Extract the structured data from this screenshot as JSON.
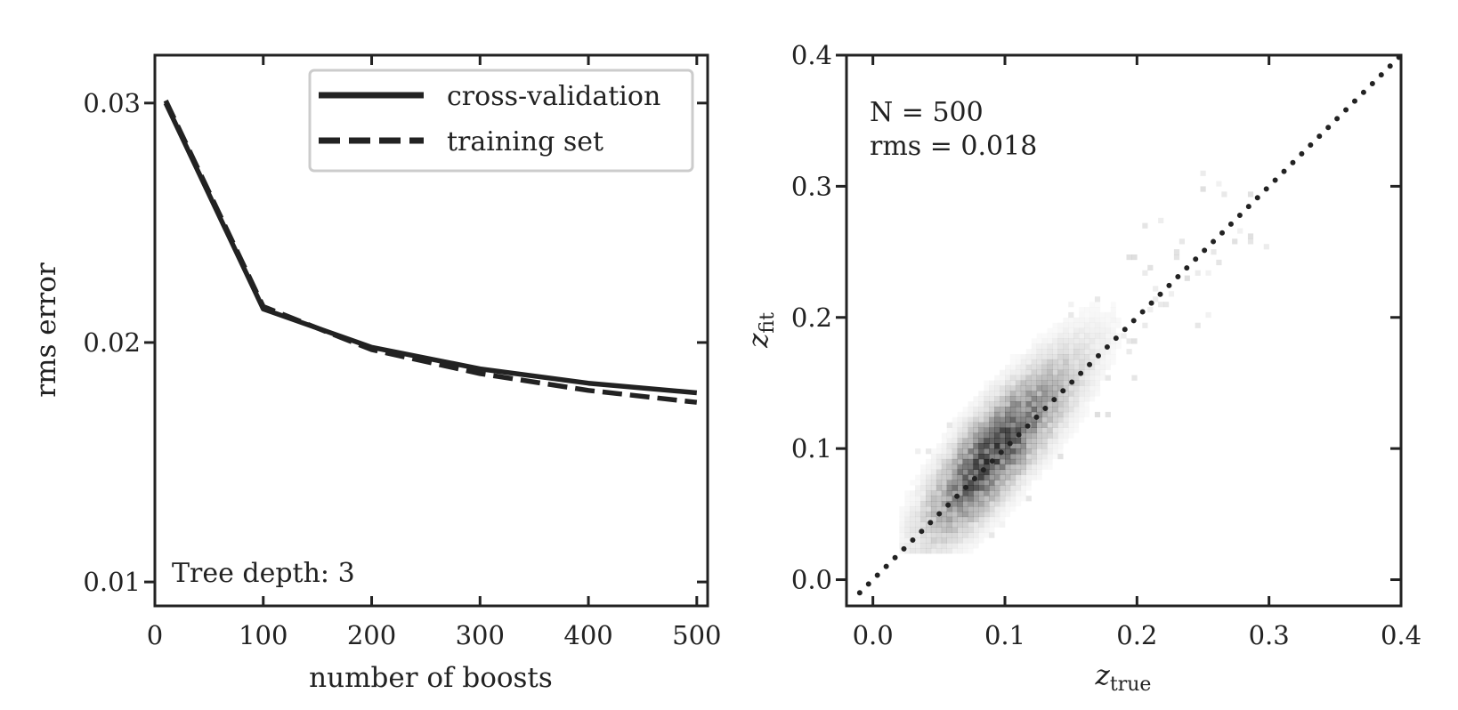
{
  "chart_data": [
    {
      "type": "line",
      "xlabel": "number of boosts",
      "ylabel": "rms error",
      "xlim": [
        0,
        510
      ],
      "ylim": [
        0.009,
        0.032
      ],
      "xticks": [
        0,
        100,
        200,
        300,
        400,
        500
      ],
      "xtick_labels": [
        "0",
        "100",
        "200",
        "300",
        "400",
        "500"
      ],
      "yticks": [
        0.01,
        0.02,
        0.03
      ],
      "ytick_labels": [
        "0.01",
        "0.02",
        "0.03"
      ],
      "grid": false,
      "legend_position": "top-right",
      "annotation": "Tree depth: 3",
      "series": [
        {
          "name": "cross-validation",
          "style": "solid",
          "x": [
            10,
            100,
            200,
            300,
            400,
            500
          ],
          "values": [
            0.03,
            0.0214,
            0.0198,
            0.0189,
            0.0183,
            0.0179
          ]
        },
        {
          "name": "training set",
          "style": "dashed",
          "x": [
            10,
            100,
            200,
            300,
            400,
            500
          ],
          "values": [
            0.0301,
            0.0215,
            0.0197,
            0.0187,
            0.018,
            0.0175
          ]
        }
      ]
    },
    {
      "type": "heatmap",
      "xlabel_main": "z",
      "xlabel_sub": "true",
      "ylabel_main": "z",
      "ylabel_sub": "fit",
      "xlim": [
        -0.02,
        0.4
      ],
      "ylim": [
        -0.02,
        0.4
      ],
      "xticks": [
        0.0,
        0.1,
        0.2,
        0.3,
        0.4
      ],
      "xtick_labels": [
        "0.0",
        "0.1",
        "0.2",
        "0.3",
        "0.4"
      ],
      "yticks": [
        0.0,
        0.1,
        0.2,
        0.3,
        0.4
      ],
      "ytick_labels": [
        "0.0",
        "0.1",
        "0.2",
        "0.3",
        "0.4"
      ],
      "grid": false,
      "annotations": [
        "N = 500",
        "rms = 0.018"
      ],
      "reference_line": {
        "style": "dotted",
        "x": [
          -0.01,
          0.4
        ],
        "y": [
          -0.01,
          0.4
        ]
      },
      "density": {
        "x_range": [
          0.02,
          0.3
        ],
        "peak": [
          0.085,
          0.09
        ],
        "correlation": "z_fit ≈ z_true",
        "scatter_rms": 0.018
      },
      "colors": {
        "density": "#000000",
        "lines": "#222222"
      }
    }
  ]
}
